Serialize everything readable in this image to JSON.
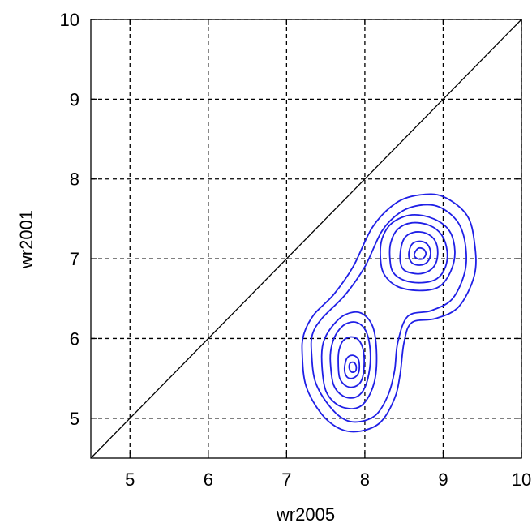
{
  "chart_data": {
    "type": "contour",
    "title": "",
    "xlabel": "wr2005",
    "ylabel": "wr2001",
    "xlim": [
      4.5,
      10
    ],
    "ylim": [
      4.5,
      10
    ],
    "xticks": [
      5,
      6,
      7,
      8,
      9,
      10
    ],
    "yticks": [
      5,
      6,
      7,
      8,
      9,
      10
    ],
    "grid": true,
    "grid_style": "dashed",
    "diagonal_line": {
      "from": [
        4.5,
        4.5
      ],
      "to": [
        10,
        10
      ],
      "color": "#000000"
    },
    "contour_color": "#1f1fe6",
    "contours": [
      {
        "name": "outer-level-1",
        "points": [
          [
            7.2,
            5.8
          ],
          [
            7.25,
            5.4
          ],
          [
            7.45,
            5.05
          ],
          [
            7.7,
            4.86
          ],
          [
            7.95,
            4.84
          ],
          [
            8.2,
            4.95
          ],
          [
            8.38,
            5.25
          ],
          [
            8.45,
            5.55
          ],
          [
            8.5,
            5.95
          ],
          [
            8.6,
            6.2
          ],
          [
            8.9,
            6.25
          ],
          [
            9.2,
            6.4
          ],
          [
            9.4,
            6.8
          ],
          [
            9.4,
            7.2
          ],
          [
            9.3,
            7.55
          ],
          [
            9.0,
            7.78
          ],
          [
            8.7,
            7.8
          ],
          [
            8.4,
            7.7
          ],
          [
            8.1,
            7.4
          ],
          [
            7.85,
            6.9
          ],
          [
            7.6,
            6.55
          ],
          [
            7.35,
            6.3
          ],
          [
            7.22,
            6.05
          ]
        ]
      },
      {
        "name": "outer-level-2",
        "points": [
          [
            7.32,
            5.8
          ],
          [
            7.37,
            5.45
          ],
          [
            7.55,
            5.15
          ],
          [
            7.75,
            4.98
          ],
          [
            7.95,
            4.96
          ],
          [
            8.15,
            5.05
          ],
          [
            8.3,
            5.3
          ],
          [
            8.38,
            5.6
          ],
          [
            8.42,
            5.95
          ],
          [
            8.55,
            6.28
          ],
          [
            8.85,
            6.35
          ],
          [
            9.12,
            6.5
          ],
          [
            9.28,
            6.85
          ],
          [
            9.28,
            7.2
          ],
          [
            9.18,
            7.47
          ],
          [
            8.95,
            7.65
          ],
          [
            8.7,
            7.67
          ],
          [
            8.45,
            7.58
          ],
          [
            8.22,
            7.35
          ],
          [
            8.0,
            6.9
          ],
          [
            7.75,
            6.55
          ],
          [
            7.45,
            6.25
          ],
          [
            7.33,
            6.05
          ]
        ]
      },
      {
        "name": "lower-peak-1",
        "points": [
          [
            7.45,
            5.7
          ],
          [
            7.5,
            5.35
          ],
          [
            7.65,
            5.17
          ],
          [
            7.85,
            5.12
          ],
          [
            8.0,
            5.2
          ],
          [
            8.12,
            5.45
          ],
          [
            8.15,
            5.8
          ],
          [
            8.1,
            6.15
          ],
          [
            7.95,
            6.32
          ],
          [
            7.75,
            6.3
          ],
          [
            7.58,
            6.15
          ],
          [
            7.47,
            5.95
          ]
        ]
      },
      {
        "name": "lower-peak-2",
        "points": [
          [
            7.56,
            5.7
          ],
          [
            7.6,
            5.42
          ],
          [
            7.72,
            5.28
          ],
          [
            7.87,
            5.26
          ],
          [
            7.98,
            5.35
          ],
          [
            8.05,
            5.55
          ],
          [
            8.07,
            5.82
          ],
          [
            8.02,
            6.08
          ],
          [
            7.9,
            6.2
          ],
          [
            7.75,
            6.18
          ],
          [
            7.63,
            6.05
          ],
          [
            7.57,
            5.88
          ]
        ]
      },
      {
        "name": "lower-peak-3",
        "points": [
          [
            7.66,
            5.7
          ],
          [
            7.68,
            5.5
          ],
          [
            7.77,
            5.4
          ],
          [
            7.88,
            5.4
          ],
          [
            7.96,
            5.48
          ],
          [
            7.99,
            5.65
          ],
          [
            7.98,
            5.85
          ],
          [
            7.92,
            5.98
          ],
          [
            7.82,
            6.02
          ],
          [
            7.72,
            5.97
          ],
          [
            7.67,
            5.85
          ]
        ]
      },
      {
        "name": "lower-peak-4",
        "points": [
          [
            7.74,
            5.62
          ],
          [
            7.77,
            5.52
          ],
          [
            7.84,
            5.5
          ],
          [
            7.91,
            5.55
          ],
          [
            7.93,
            5.65
          ],
          [
            7.91,
            5.75
          ],
          [
            7.84,
            5.79
          ],
          [
            7.77,
            5.75
          ]
        ]
      },
      {
        "name": "lower-peak-5",
        "points": [
          [
            7.8,
            5.63
          ],
          [
            7.83,
            5.58
          ],
          [
            7.88,
            5.59
          ],
          [
            7.89,
            5.65
          ],
          [
            7.86,
            5.7
          ],
          [
            7.81,
            5.69
          ]
        ]
      },
      {
        "name": "upper-peak-1",
        "points": [
          [
            8.2,
            7.0
          ],
          [
            8.25,
            6.8
          ],
          [
            8.42,
            6.65
          ],
          [
            8.7,
            6.6
          ],
          [
            8.95,
            6.65
          ],
          [
            9.1,
            6.85
          ],
          [
            9.15,
            7.1
          ],
          [
            9.08,
            7.35
          ],
          [
            8.88,
            7.5
          ],
          [
            8.6,
            7.55
          ],
          [
            8.35,
            7.45
          ],
          [
            8.22,
            7.25
          ]
        ]
      },
      {
        "name": "upper-peak-2",
        "points": [
          [
            8.32,
            7.0
          ],
          [
            8.36,
            6.83
          ],
          [
            8.5,
            6.73
          ],
          [
            8.72,
            6.7
          ],
          [
            8.92,
            6.75
          ],
          [
            9.03,
            6.9
          ],
          [
            9.05,
            7.1
          ],
          [
            8.98,
            7.3
          ],
          [
            8.82,
            7.42
          ],
          [
            8.6,
            7.45
          ],
          [
            8.42,
            7.37
          ],
          [
            8.33,
            7.2
          ]
        ]
      },
      {
        "name": "upper-peak-3",
        "points": [
          [
            8.45,
            7.05
          ],
          [
            8.48,
            6.88
          ],
          [
            8.6,
            6.82
          ],
          [
            8.75,
            6.82
          ],
          [
            8.88,
            6.9
          ],
          [
            8.93,
            7.05
          ],
          [
            8.9,
            7.22
          ],
          [
            8.78,
            7.32
          ],
          [
            8.62,
            7.33
          ],
          [
            8.5,
            7.25
          ]
        ]
      },
      {
        "name": "upper-peak-4",
        "points": [
          [
            8.56,
            7.05
          ],
          [
            8.6,
            6.95
          ],
          [
            8.7,
            6.92
          ],
          [
            8.8,
            6.96
          ],
          [
            8.84,
            7.07
          ],
          [
            8.8,
            7.18
          ],
          [
            8.7,
            7.22
          ],
          [
            8.6,
            7.18
          ]
        ]
      },
      {
        "name": "upper-peak-5",
        "points": [
          [
            8.63,
            7.05
          ],
          [
            8.67,
            7.0
          ],
          [
            8.74,
            7.0
          ],
          [
            8.78,
            7.06
          ],
          [
            8.75,
            7.12
          ],
          [
            8.68,
            7.13
          ]
        ]
      }
    ]
  }
}
